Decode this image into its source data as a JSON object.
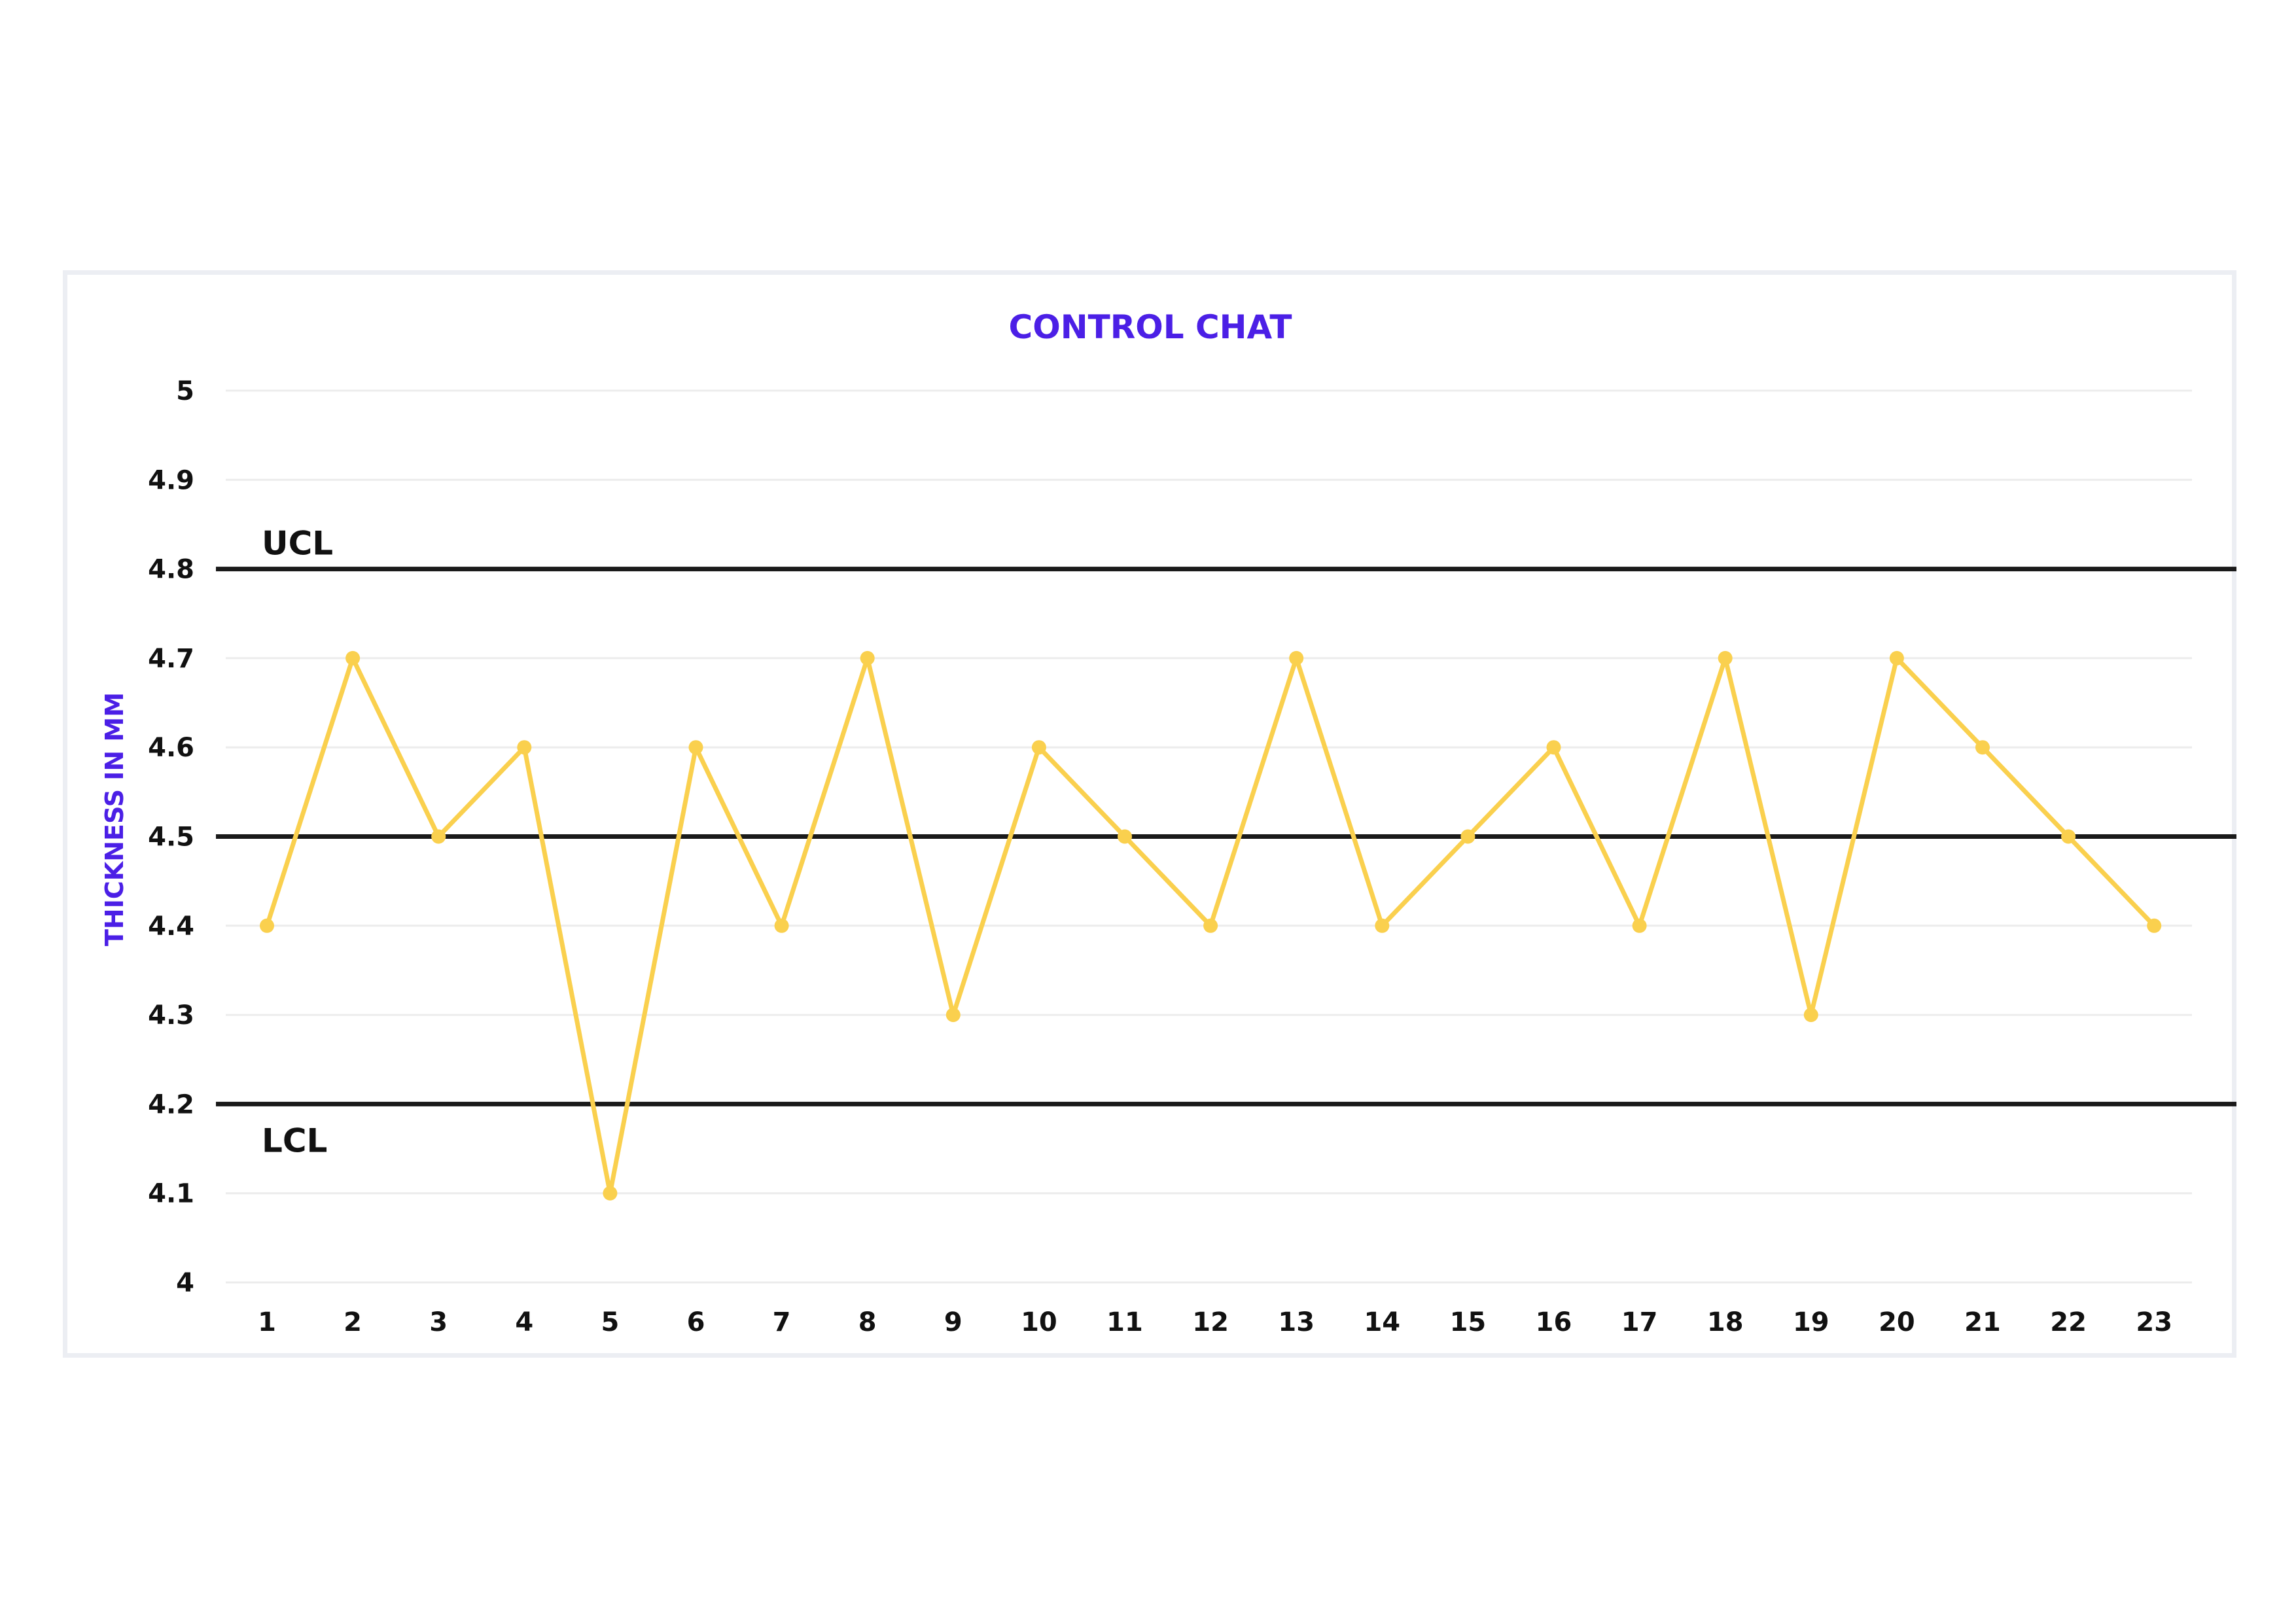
{
  "chart_data": {
    "type": "line",
    "title": "CONTROL CHAT",
    "ylabel": "THICKNESS IN MM",
    "xlabel": "",
    "ylim": [
      4,
      5
    ],
    "yticks": [
      "4",
      "4.1",
      "4.2",
      "4.3",
      "4.4",
      "4.5",
      "4.6",
      "4.7",
      "4.8",
      "4.9",
      "5"
    ],
    "ytick_values": [
      4,
      4.1,
      4.2,
      4.3,
      4.4,
      4.5,
      4.6,
      4.7,
      4.8,
      4.9,
      5
    ],
    "categories": [
      "1",
      "2",
      "3",
      "4",
      "5",
      "6",
      "7",
      "8",
      "9",
      "10",
      "11",
      "12",
      "13",
      "14",
      "15",
      "16",
      "17",
      "18",
      "19",
      "20",
      "21",
      "22",
      "23"
    ],
    "values": [
      4.4,
      4.7,
      4.5,
      4.6,
      4.1,
      4.6,
      4.4,
      4.7,
      4.3,
      4.6,
      4.5,
      4.4,
      4.7,
      4.4,
      4.5,
      4.6,
      4.4,
      4.7,
      4.3,
      4.7,
      4.6,
      4.5,
      4.4
    ],
    "reference_lines": [
      {
        "label": "UCL",
        "value": 4.8
      },
      {
        "label": "",
        "value": 4.5
      },
      {
        "label": "LCL",
        "value": 4.2
      }
    ],
    "grid": true,
    "legend": "none",
    "colors": {
      "series": "#fad04e",
      "title": "#4b1fe6",
      "reference": "#1a1a1a",
      "grid": "#ececec"
    }
  }
}
